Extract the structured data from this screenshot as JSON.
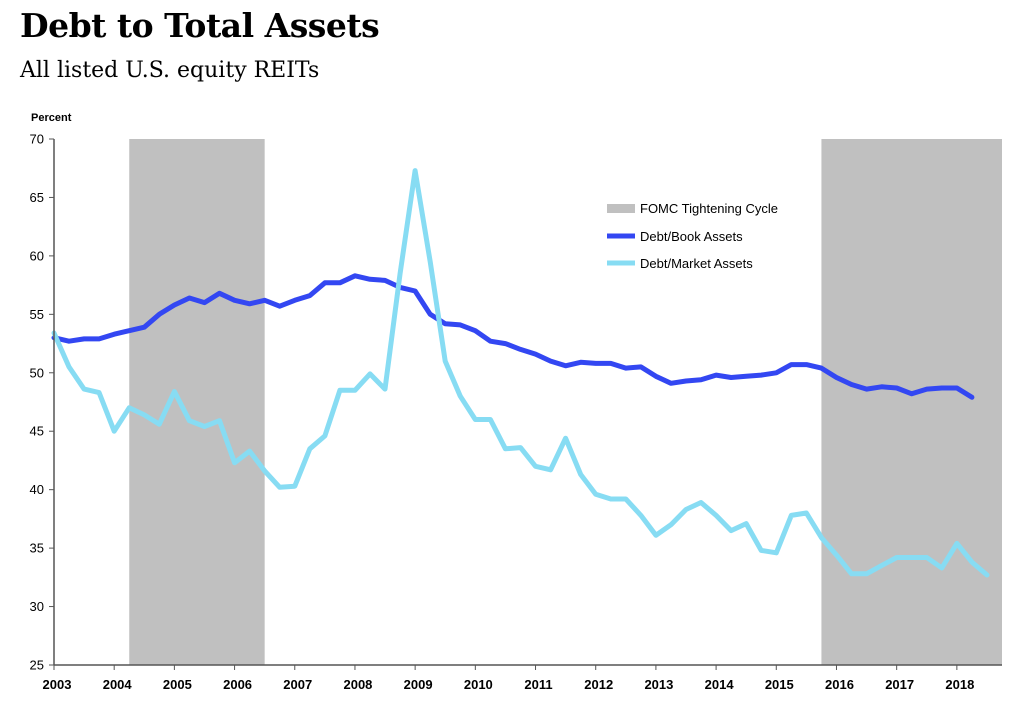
{
  "header": {
    "title": "Debt to Total Assets",
    "subtitle": "All listed U.S. equity REITs"
  },
  "chart_data": {
    "type": "line",
    "ylabel": "Percent",
    "xlabel": "",
    "ylim": [
      25,
      70
    ],
    "yticks": [
      25,
      30,
      35,
      40,
      45,
      50,
      55,
      60,
      65,
      70
    ],
    "xlim": [
      2003.0,
      2018.75
    ],
    "xticks": [
      2003,
      2004,
      2005,
      2006,
      2007,
      2008,
      2009,
      2010,
      2011,
      2012,
      2013,
      2014,
      2015,
      2016,
      2017,
      2018
    ],
    "grid": false,
    "legend_position": "top-right",
    "shaded_regions": {
      "name": "FOMC Tightening Cycle",
      "color": "#c0c0c0",
      "ranges": [
        [
          2004.25,
          2006.5
        ],
        [
          2015.75,
          2018.75
        ]
      ]
    },
    "series": [
      {
        "name": "Debt/Book Assets",
        "color": "#3347f2",
        "points": [
          [
            2003.0,
            53.0
          ],
          [
            2003.25,
            52.7
          ],
          [
            2003.5,
            52.9
          ],
          [
            2003.75,
            52.9
          ],
          [
            2004.0,
            53.3
          ],
          [
            2004.25,
            53.6
          ],
          [
            2004.5,
            53.9
          ],
          [
            2004.75,
            55.0
          ],
          [
            2005.0,
            55.8
          ],
          [
            2005.25,
            56.4
          ],
          [
            2005.5,
            56.0
          ],
          [
            2005.75,
            56.8
          ],
          [
            2006.0,
            56.2
          ],
          [
            2006.25,
            55.9
          ],
          [
            2006.5,
            56.2
          ],
          [
            2006.75,
            55.7
          ],
          [
            2007.0,
            56.2
          ],
          [
            2007.25,
            56.6
          ],
          [
            2007.5,
            57.7
          ],
          [
            2007.75,
            57.7
          ],
          [
            2008.0,
            58.3
          ],
          [
            2008.25,
            58.0
          ],
          [
            2008.5,
            57.9
          ],
          [
            2008.75,
            57.3
          ],
          [
            2009.0,
            57.0
          ],
          [
            2009.25,
            55.0
          ],
          [
            2009.5,
            54.2
          ],
          [
            2009.75,
            54.1
          ],
          [
            2010.0,
            53.6
          ],
          [
            2010.25,
            52.7
          ],
          [
            2010.5,
            52.5
          ],
          [
            2010.75,
            52.0
          ],
          [
            2011.0,
            51.6
          ],
          [
            2011.25,
            51.0
          ],
          [
            2011.5,
            50.6
          ],
          [
            2011.75,
            50.9
          ],
          [
            2012.0,
            50.8
          ],
          [
            2012.25,
            50.8
          ],
          [
            2012.5,
            50.4
          ],
          [
            2012.75,
            50.5
          ],
          [
            2013.0,
            49.7
          ],
          [
            2013.25,
            49.1
          ],
          [
            2013.5,
            49.3
          ],
          [
            2013.75,
            49.4
          ],
          [
            2014.0,
            49.8
          ],
          [
            2014.25,
            49.6
          ],
          [
            2014.5,
            49.7
          ],
          [
            2014.75,
            49.8
          ],
          [
            2015.0,
            50.0
          ],
          [
            2015.25,
            50.7
          ],
          [
            2015.5,
            50.7
          ],
          [
            2015.75,
            50.4
          ],
          [
            2016.0,
            49.6
          ],
          [
            2016.25,
            49.0
          ],
          [
            2016.5,
            48.6
          ],
          [
            2016.75,
            48.8
          ],
          [
            2017.0,
            48.7
          ],
          [
            2017.25,
            48.2
          ],
          [
            2017.5,
            48.6
          ],
          [
            2017.75,
            48.7
          ],
          [
            2018.0,
            48.7
          ],
          [
            2018.25,
            47.9
          ]
        ]
      },
      {
        "name": "Debt/Market Assets",
        "color": "#87dcf3",
        "points": [
          [
            2003.0,
            53.4
          ],
          [
            2003.25,
            50.5
          ],
          [
            2003.5,
            48.6
          ],
          [
            2003.75,
            48.3
          ],
          [
            2004.0,
            45.0
          ],
          [
            2004.25,
            47.0
          ],
          [
            2004.5,
            46.4
          ],
          [
            2004.75,
            45.6
          ],
          [
            2005.0,
            48.4
          ],
          [
            2005.25,
            45.9
          ],
          [
            2005.5,
            45.4
          ],
          [
            2005.75,
            45.9
          ],
          [
            2006.0,
            42.3
          ],
          [
            2006.25,
            43.3
          ],
          [
            2006.5,
            41.6
          ],
          [
            2006.75,
            40.2
          ],
          [
            2007.0,
            40.3
          ],
          [
            2007.25,
            43.5
          ],
          [
            2007.5,
            44.6
          ],
          [
            2007.75,
            48.5
          ],
          [
            2008.0,
            48.5
          ],
          [
            2008.25,
            49.9
          ],
          [
            2008.5,
            48.6
          ],
          [
            2008.75,
            58.5
          ],
          [
            2009.0,
            67.3
          ],
          [
            2009.25,
            59.5
          ],
          [
            2009.5,
            51.0
          ],
          [
            2009.75,
            48.0
          ],
          [
            2010.0,
            46.0
          ],
          [
            2010.25,
            46.0
          ],
          [
            2010.5,
            43.5
          ],
          [
            2010.75,
            43.6
          ],
          [
            2011.0,
            42.0
          ],
          [
            2011.25,
            41.7
          ],
          [
            2011.5,
            44.4
          ],
          [
            2011.75,
            41.3
          ],
          [
            2012.0,
            39.6
          ],
          [
            2012.25,
            39.2
          ],
          [
            2012.5,
            39.2
          ],
          [
            2012.75,
            37.8
          ],
          [
            2013.0,
            36.1
          ],
          [
            2013.25,
            37.0
          ],
          [
            2013.5,
            38.3
          ],
          [
            2013.75,
            38.9
          ],
          [
            2014.0,
            37.8
          ],
          [
            2014.25,
            36.5
          ],
          [
            2014.5,
            37.1
          ],
          [
            2014.75,
            34.8
          ],
          [
            2015.0,
            34.6
          ],
          [
            2015.25,
            37.8
          ],
          [
            2015.5,
            38.0
          ],
          [
            2015.75,
            35.9
          ],
          [
            2016.0,
            34.4
          ],
          [
            2016.25,
            32.8
          ],
          [
            2016.5,
            32.8
          ],
          [
            2016.75,
            33.5
          ],
          [
            2017.0,
            34.2
          ],
          [
            2017.25,
            34.2
          ],
          [
            2017.5,
            34.2
          ],
          [
            2017.75,
            33.3
          ],
          [
            2018.0,
            35.4
          ],
          [
            2018.25,
            33.8
          ],
          [
            2018.5,
            32.7
          ]
        ]
      }
    ]
  }
}
